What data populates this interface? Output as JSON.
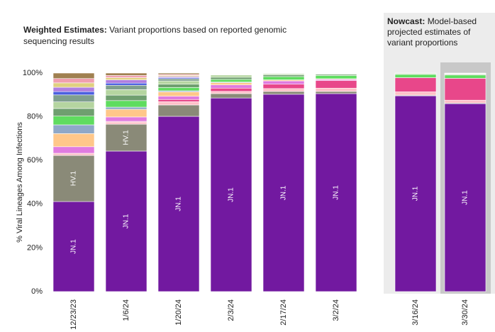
{
  "chart_data": {
    "type": "stacked_bar",
    "title_bold": "Weighted Estimates:",
    "title": "Variant proportions based on reported genomic",
    "title_line2": "sequencing results",
    "nowcast_bold": "Nowcast:",
    "nowcast_text": "Model-based",
    "nowcast_line2": "projected estimates of",
    "nowcast_line3": "variant proportions",
    "y_label": "% Viral Lineages Among Infections",
    "categories": [
      "12/23/23",
      "1/6/24",
      "1/20/24",
      "2/3/24",
      "2/17/24",
      "3/2/24",
      "3/16/24",
      "3/30/24"
    ],
    "nowcast_from": 6,
    "highlight": 7,
    "ylim": [
      0,
      100
    ],
    "yticks": [
      {
        "value": 0,
        "label": "0%"
      },
      {
        "value": 20,
        "label": "20%"
      },
      {
        "value": 40,
        "label": "40%"
      },
      {
        "value": 60,
        "label": "60%"
      },
      {
        "value": 80,
        "label": "80%"
      },
      {
        "value": 100,
        "label": "100%"
      }
    ],
    "series": [
      {
        "color": "#7219a0",
        "values": [
          41.2,
          64.3,
          80.2,
          88.6,
          90.3,
          90.6,
          89.6,
          86.0
        ],
        "labels": [
          "JN.1",
          "JN.1",
          "JN.1",
          "JN.1",
          "JN.1",
          "JN.1",
          "JN.1",
          "JN.1"
        ]
      },
      {
        "color": "#8a8a78",
        "values": [
          21.1,
          12.3,
          5.2,
          2.0,
          1.3,
          1.0,
          0.3,
          0.3
        ],
        "labels": [
          "HV.1",
          "HV.1",
          null,
          null,
          null,
          null,
          null,
          null
        ]
      },
      {
        "color": "#ffc0c8",
        "values": [
          1.0,
          1.0,
          1.5,
          1.0,
          1.3,
          1.5,
          1.5,
          1.3
        ]
      },
      {
        "color": "#e8478a",
        "values": [
          0,
          0.3,
          1.0,
          1.5,
          2.0,
          3.5,
          6.5,
          10.0
        ]
      },
      {
        "color": "#e07be0",
        "values": [
          3.0,
          2.0,
          1.5,
          1.5,
          1.5,
          0.5,
          0,
          0
        ]
      },
      {
        "color": "#ffc78a",
        "values": [
          6.0,
          3.5,
          2.0,
          1.0,
          0.5,
          0.3,
          0,
          0
        ]
      },
      {
        "color": "#8fa8c8",
        "values": [
          4.0,
          1.0,
          0.5,
          0.3,
          0,
          0,
          0,
          0
        ]
      },
      {
        "color": "#5fdc5f",
        "values": [
          4.0,
          3.0,
          1.5,
          1.2,
          1.5,
          1.5,
          1.5,
          1.5
        ]
      },
      {
        "color": "#6f9f6f",
        "values": [
          3.5,
          2.5,
          1.5,
          1.0,
          0.8,
          0.5,
          0.3,
          0.3
        ]
      },
      {
        "color": "#b5d5a0",
        "values": [
          3.0,
          2.5,
          1.5,
          1.0,
          0.5,
          0.3,
          0.3,
          0.3
        ]
      },
      {
        "color": "#7f9f8f",
        "values": [
          3.2,
          2.0,
          1.0,
          0.2,
          0.1,
          0.1,
          0,
          0.1
        ]
      },
      {
        "color": "#4b5fe0",
        "values": [
          1.5,
          1.0,
          0.5,
          0.1,
          0,
          0,
          0,
          0
        ]
      },
      {
        "color": "#b07fe0",
        "values": [
          2.0,
          1.5,
          0.5,
          0.2,
          0.1,
          0.1,
          0,
          0.1
        ]
      },
      {
        "color": "#e0d080",
        "values": [
          2.0,
          1.0,
          0.5,
          0.1,
          0,
          0,
          0,
          0
        ]
      },
      {
        "color": "#f09fb0",
        "values": [
          2.0,
          1.0,
          0.5,
          0.2,
          0.1,
          0.1,
          0,
          0.1
        ]
      },
      {
        "color": "#a08050",
        "values": [
          2.5,
          1.1,
          0.6,
          0.1,
          0,
          0,
          0,
          0
        ]
      }
    ]
  }
}
